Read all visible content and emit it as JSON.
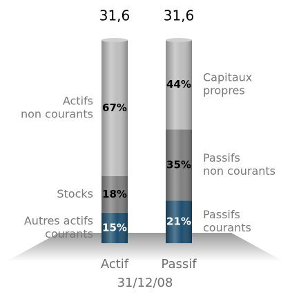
{
  "chart_data": {
    "type": "stacked-bar",
    "xlabel": "31/12/08",
    "ylim": [
      0,
      100
    ],
    "bars": [
      {
        "category": "Actif",
        "total": {
          "value": 31.6,
          "label": "31,6"
        },
        "label_side": "left",
        "segments": [
          {
            "name": [
              "Autres actifs",
              "courants"
            ],
            "value": 15,
            "value_label": "15%",
            "color": "#1d4f70"
          },
          {
            "name": [
              "Stocks"
            ],
            "value": 18,
            "value_label": "18%",
            "color": "#808080"
          },
          {
            "name": [
              "Actifs",
              "non courants"
            ],
            "value": 67,
            "value_label": "67%",
            "color": "#bdbdbd"
          }
        ]
      },
      {
        "category": "Passif",
        "total": {
          "value": 31.6,
          "label": "31,6"
        },
        "label_side": "right",
        "segments": [
          {
            "name": [
              "Passifs",
              "courants"
            ],
            "value": 21,
            "value_label": "21%",
            "color": "#1d4f70"
          },
          {
            "name": [
              "Passifs",
              "non courants"
            ],
            "value": 35,
            "value_label": "35%",
            "color": "#808080"
          },
          {
            "name": [
              "Capitaux",
              "propres"
            ],
            "value": 44,
            "value_label": "44%",
            "color": "#bdbdbd"
          }
        ]
      }
    ]
  }
}
